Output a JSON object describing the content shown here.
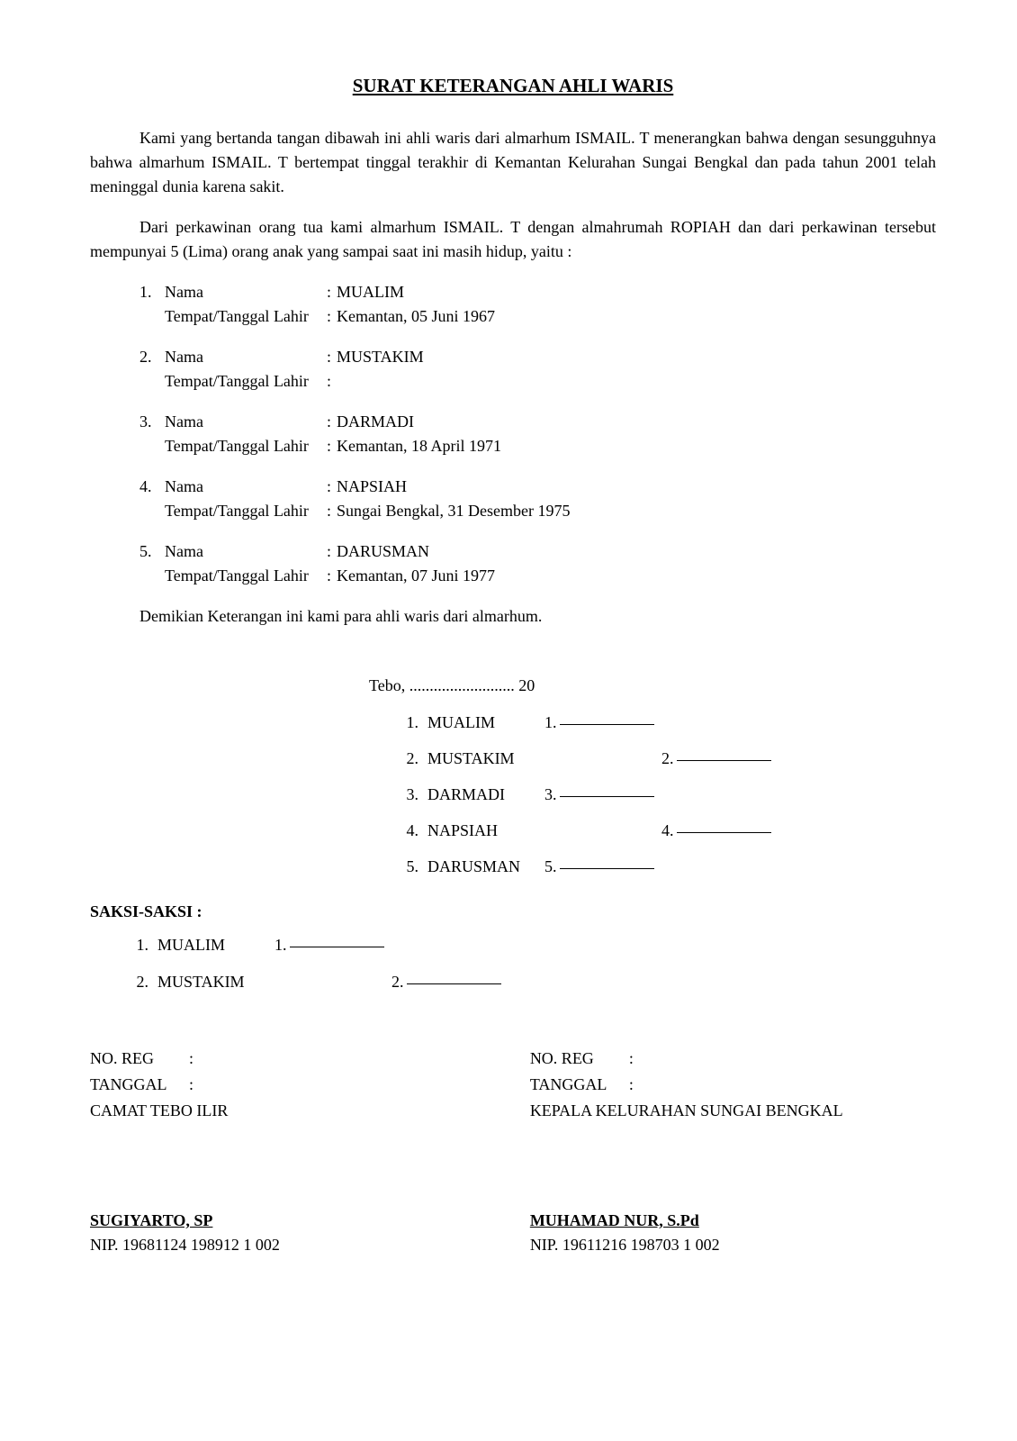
{
  "title": "SURAT KETERANGAN AHLI WARIS",
  "p1": "Kami yang bertanda tangan dibawah ini ahli waris dari almarhum ISMAIL. T menerangkan bahwa dengan sesungguhnya bahwa almarhum ISMAIL. T bertempat tinggal terakhir di Kemantan Kelurahan Sungai Bengkal dan pada tahun 2001 telah meninggal dunia karena sakit.",
  "p2": "Dari perkawinan orang tua kami almarhum ISMAIL. T dengan almahrumah ROPIAH dan dari perkawinan tersebut mempunyai 5 (Lima) orang anak yang sampai saat ini masih hidup, yaitu :",
  "labels": {
    "nama": "Nama",
    "ttl": "Tempat/Tanggal Lahir",
    "noreg": "NO. REG",
    "tanggal": "TANGGAL",
    "saksi": "SAKSI-SAKSI :"
  },
  "heirs": [
    {
      "no": "1.",
      "nama": "MUALIM",
      "ttl": "Kemantan, 05 Juni 1967"
    },
    {
      "no": "2.",
      "nama": "MUSTAKIM",
      "ttl": ""
    },
    {
      "no": "3.",
      "nama": "DARMADI",
      "ttl": "Kemantan, 18 April 1971"
    },
    {
      "no": "4.",
      "nama": "NAPSIAH",
      "ttl": "Sungai Bengkal, 31 Desember 1975"
    },
    {
      "no": "5.",
      "nama": "DARUSMAN",
      "ttl": "Kemantan, 07 Juni 1977"
    }
  ],
  "closing": "Demikian Keterangan ini kami para ahli waris dari almarhum.",
  "date_line": "Tebo, .......................... 20",
  "sigs": [
    {
      "no": "1.",
      "name": "MUALIM",
      "slot": "1.",
      "offset": false
    },
    {
      "no": "2.",
      "name": "MUSTAKIM",
      "slot": "2.",
      "offset": true
    },
    {
      "no": "3.",
      "name": "DARMADI",
      "slot": "3.",
      "offset": false
    },
    {
      "no": "4.",
      "name": "NAPSIAH",
      "slot": "4.",
      "offset": true
    },
    {
      "no": "5.",
      "name": "DARUSMAN",
      "slot": "5.",
      "offset": false
    }
  ],
  "witnesses": [
    {
      "no": "1.",
      "name": "MUALIM",
      "slot": "1.",
      "offset": false
    },
    {
      "no": "2.",
      "name": "MUSTAKIM",
      "slot": "2.",
      "offset": true
    }
  ],
  "officials": {
    "left": {
      "noreg": "",
      "tanggal": "",
      "title": "CAMAT TEBO ILIR",
      "name": "SUGIYARTO, SP",
      "nip": "NIP. 19681124 198912 1 002"
    },
    "right": {
      "noreg": "",
      "tanggal": "",
      "title": "KEPALA KELURAHAN SUNGAI BENGKAL",
      "name": "MUHAMAD NUR, S.Pd",
      "nip": "NIP. 19611216 198703 1 002"
    }
  }
}
